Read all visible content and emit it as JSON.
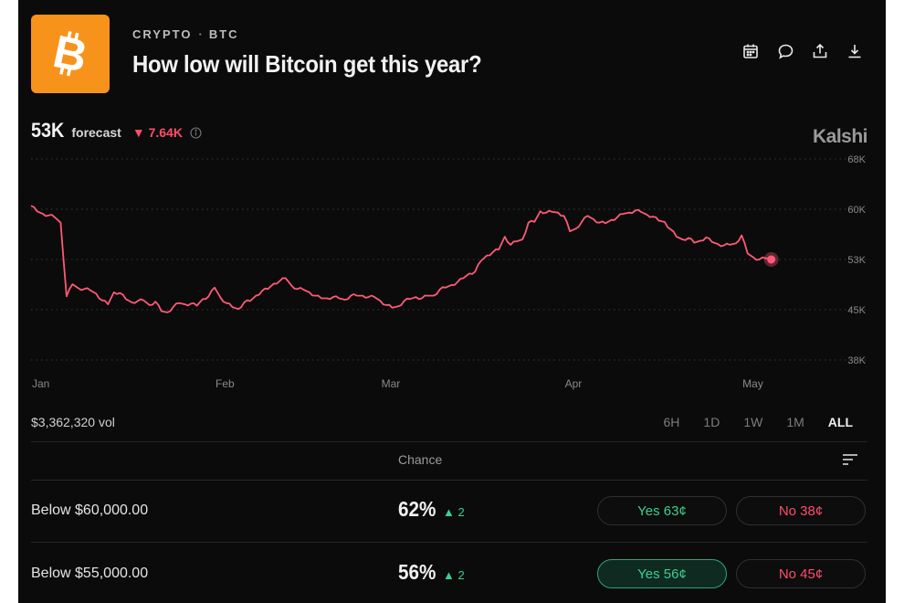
{
  "header": {
    "category": "CRYPTO",
    "separator": "·",
    "ticker": "BTC",
    "title": "How low will Bitcoin get this year?",
    "logo_color": "#f7931a",
    "actions": [
      "calendar-icon",
      "comment-icon",
      "share-icon",
      "download-icon"
    ]
  },
  "forecast": {
    "value": "53K",
    "label": "forecast",
    "change": "▼ 7.64K",
    "info_icon": "info-icon"
  },
  "brand": "Kalshi",
  "chart_data": {
    "type": "line",
    "line_color": "#ff5a75",
    "y_ticks": [
      "68K",
      "60K",
      "53K",
      "45K",
      "38K"
    ],
    "x_ticks": [
      "Jan",
      "Feb",
      "Mar",
      "Apr",
      "May"
    ],
    "ylim": [
      38,
      68
    ],
    "grid": true,
    "series": [
      {
        "x": [
          0,
          1,
          2,
          3,
          4,
          5,
          6,
          7,
          8,
          9,
          10,
          11,
          12,
          13,
          14,
          15,
          16,
          17,
          18,
          19,
          20,
          21,
          22,
          23,
          24,
          25,
          26,
          27,
          28,
          29,
          30,
          31,
          32,
          33,
          34,
          35,
          36,
          37,
          38,
          39,
          40,
          41,
          42,
          43,
          44,
          45,
          46,
          47,
          48,
          49,
          50,
          51,
          52,
          53,
          54,
          55,
          56,
          57,
          58,
          59,
          60,
          61,
          62,
          63,
          64,
          65,
          66,
          67,
          68,
          69,
          70,
          71,
          72,
          73,
          74,
          75,
          76,
          77,
          78,
          79,
          80,
          81,
          82,
          83,
          84,
          85,
          86,
          87,
          88,
          89,
          90,
          91,
          92,
          93,
          94,
          95,
          96,
          97,
          98,
          99,
          100,
          101,
          102,
          103,
          104,
          105,
          106,
          107,
          108,
          109,
          110,
          111,
          112,
          113,
          114,
          115,
          116,
          117,
          118,
          119,
          120,
          121,
          122,
          123,
          124,
          125
        ],
        "values": [
          61.0,
          60.2,
          59.8,
          59.6,
          59.3,
          58.5,
          47.5,
          49.3,
          48.7,
          48.6,
          48.4,
          47.9,
          46.9,
          46.3,
          48.1,
          48.0,
          47.1,
          46.6,
          46.8,
          46.9,
          46.2,
          46.7,
          45.3,
          45.1,
          45.9,
          46.5,
          46.3,
          46.4,
          46.1,
          47.1,
          47.5,
          48.8,
          47.3,
          46.5,
          45.9,
          45.6,
          46.6,
          46.8,
          47.6,
          48.3,
          48.6,
          49.4,
          49.8,
          50.2,
          49.1,
          48.6,
          48.5,
          48.1,
          47.6,
          47.2,
          47.2,
          47.4,
          47.2,
          47.0,
          47.6,
          47.6,
          47.6,
          47.4,
          47.4,
          46.8,
          46.2,
          45.8,
          46.0,
          46.8,
          47.1,
          47.4,
          47.2,
          47.6,
          47.6,
          48.5,
          48.8,
          49.2,
          49.6,
          50.2,
          50.9,
          51.2,
          52.8,
          53.6,
          54.1,
          54.5,
          56.4,
          55.2,
          55.7,
          56.0,
          58.5,
          58.6,
          60.2,
          60.0,
          60.1,
          60.0,
          59.5,
          57.2,
          57.6,
          58.6,
          59.5,
          59.0,
          58.5,
          58.4,
          58.9,
          59.3,
          59.8,
          60.0,
          60.3,
          60.1,
          59.7,
          59.4,
          58.8,
          58.6,
          57.5,
          56.4,
          56.0,
          56.2,
          55.5,
          55.8,
          56.3,
          55.6,
          55.3,
          55.1,
          55.2,
          55.4,
          56.6,
          53.9,
          53.3,
          53.0,
          53.2,
          53.0
        ]
      }
    ]
  },
  "volume": "$3,362,320 vol",
  "ranges": [
    "6H",
    "1D",
    "1W",
    "1M",
    "ALL"
  ],
  "active_range": "ALL",
  "table": {
    "chance_header": "Chance",
    "rows": [
      {
        "label": "Below $60,000.00",
        "chance": "62%",
        "delta": "▲ 2",
        "yes": "Yes 63¢",
        "no": "No 38¢"
      },
      {
        "label": "Below $55,000.00",
        "chance": "56%",
        "delta": "▲ 2",
        "yes": "Yes 56¢",
        "no": "No 45¢"
      }
    ]
  }
}
